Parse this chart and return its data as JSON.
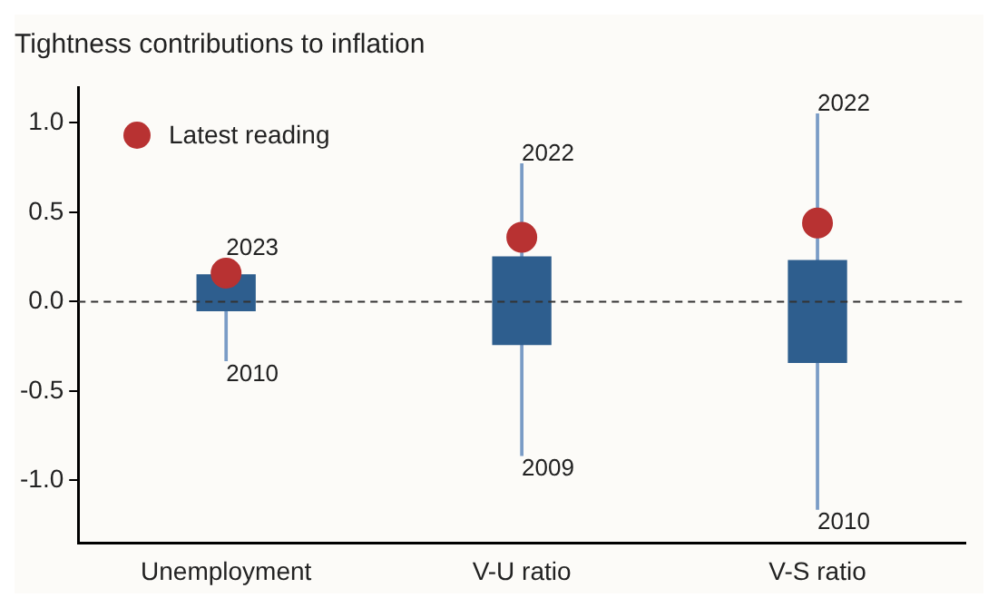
{
  "chart_data": {
    "type": "box",
    "title": "Tightness contributions to inflation",
    "categories": [
      "Unemployment",
      "V-U ratio",
      "V-S ratio"
    ],
    "boxes": [
      {
        "low": -0.33,
        "q1": -0.05,
        "q3": 0.15,
        "high": 0.24
      },
      {
        "low": -0.86,
        "q1": -0.24,
        "q3": 0.25,
        "high": 0.77
      },
      {
        "low": -1.16,
        "q1": -0.34,
        "q3": 0.23,
        "high": 1.05
      }
    ],
    "color": "#2e5e8e",
    "series": [
      {
        "name": "Latest reading",
        "type": "scatter",
        "color": "#b83232",
        "x": [
          "Unemployment",
          "V-U ratio",
          "V-S ratio"
        ],
        "values": [
          0.16,
          0.36,
          0.44
        ]
      }
    ],
    "annotations": [
      {
        "text": "2023",
        "x": "Unemployment",
        "y": 0.24
      },
      {
        "text": "2010",
        "x": "Unemployment",
        "y": -0.33
      },
      {
        "text": "2022",
        "x": "V-U ratio",
        "y": 0.77
      },
      {
        "text": "2009",
        "x": "V-U ratio",
        "y": -0.86
      },
      {
        "text": "2022",
        "x": "V-S ratio",
        "y": 1.05
      },
      {
        "text": "2010",
        "x": "V-S ratio",
        "y": -1.16
      }
    ],
    "ref_lines": [
      {
        "axis": "y",
        "value": 0,
        "color": "#333333",
        "line_style": "dashed"
      }
    ],
    "ylim": [
      -1.35,
      1.2
    ],
    "yticks": [
      {
        "value": -1,
        "label": "-1.0"
      },
      {
        "value": -0.5,
        "label": "-0.5"
      },
      {
        "value": 0,
        "label": "0.0"
      },
      {
        "value": 0.5,
        "label": "0.5"
      },
      {
        "value": 1,
        "label": "1.0"
      }
    ],
    "grid": false,
    "legend": "top left",
    "marker": "circle"
  }
}
